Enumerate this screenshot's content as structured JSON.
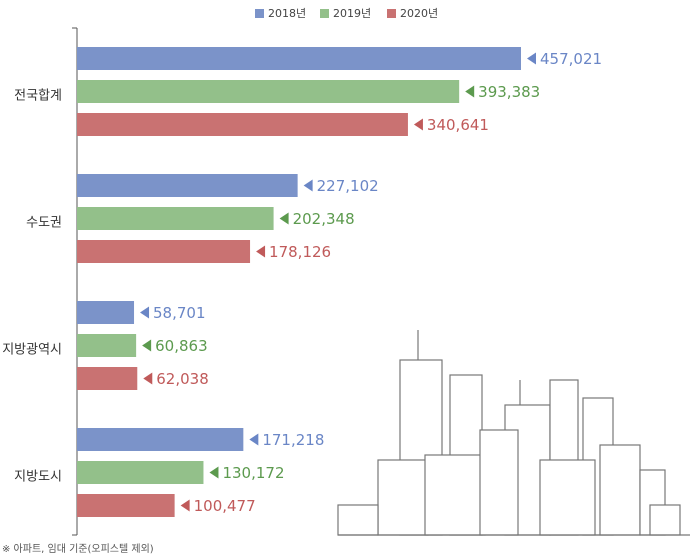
{
  "chart_data": {
    "type": "hbar",
    "categories": [
      "전국합계",
      "수도권",
      "지방광역시",
      "지방도시"
    ],
    "series": [
      {
        "name": "2018년",
        "color": "#7b93c9",
        "values": [
          457021,
          227102,
          58701,
          171218
        ],
        "value_labels": [
          "457,021",
          "227,102",
          "58,701",
          "171,218"
        ]
      },
      {
        "name": "2019년",
        "color": "#93c08a",
        "values": [
          393383,
          202348,
          60863,
          130172
        ],
        "value_labels": [
          "393,383",
          "202,348",
          "60,863",
          "130,172"
        ]
      },
      {
        "name": "2020년",
        "color": "#c97272",
        "values": [
          340641,
          178126,
          62038,
          100477
        ],
        "value_labels": [
          "340,641",
          "178,126",
          "62,038",
          "100,477"
        ]
      }
    ],
    "label_colors": [
      "#6a86c6",
      "#5c9a4e",
      "#c05a5a"
    ],
    "note": "※ 아파트, 임대 기준(오피스텔 제외)"
  }
}
